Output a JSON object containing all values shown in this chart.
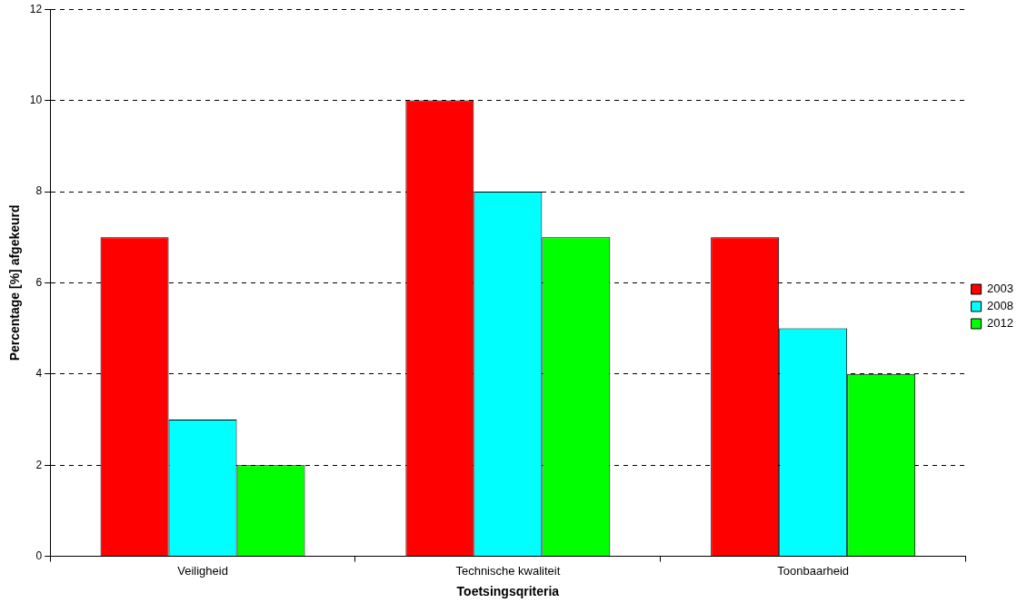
{
  "chart_data": {
    "type": "bar",
    "xlabel": "Toetsingsqriteria",
    "ylabel": "Percentage [%] afgekeurd",
    "categories": [
      "Veiligheid",
      "Technische kwaliteit",
      "Toonbaarheid"
    ],
    "series": [
      {
        "name": "2003",
        "color": "#ff0000",
        "values": [
          7,
          10,
          7
        ]
      },
      {
        "name": "2008",
        "color": "#00ffff",
        "values": [
          3,
          8,
          5
        ]
      },
      {
        "name": "2012",
        "color": "#00ff00",
        "values": [
          2,
          7,
          4
        ]
      }
    ],
    "ylim": [
      0,
      12
    ],
    "yticks": [
      0,
      2,
      4,
      6,
      8,
      10,
      12
    ],
    "grid": "y",
    "legend": "right"
  }
}
